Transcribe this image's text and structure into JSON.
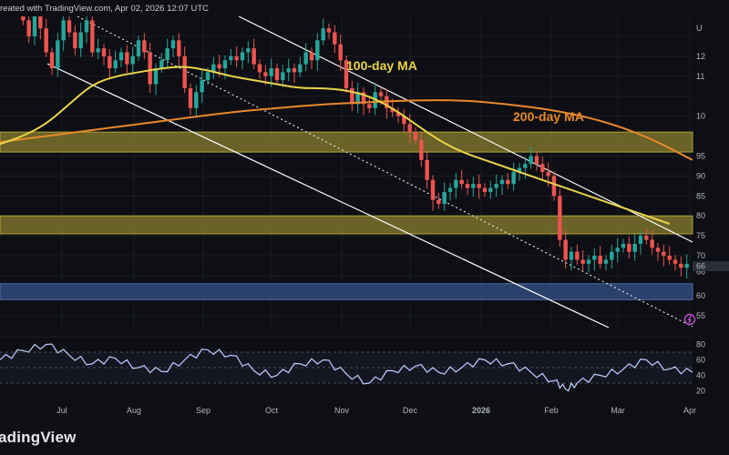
{
  "header": {
    "text": "reated with TradingView.com, Apr 02, 2026 12:07 UTC"
  },
  "footer": {
    "logo": "adingView"
  },
  "chart_data": [
    {
      "type": "line",
      "panel": "price",
      "x_labels": [
        "Jul",
        "Aug",
        "Sep",
        "Oct",
        "Nov",
        "Dec",
        "2026",
        "Feb",
        "Mar",
        "Apr"
      ],
      "price_axis_labels": [
        "12",
        "11",
        "10",
        "95",
        "90",
        "85",
        "80",
        "75",
        "70",
        "66",
        "60",
        "55"
      ],
      "corner_label": "U",
      "price_path": [
        [
          0,
          138
        ],
        [
          0.5,
          140
        ],
        [
          1,
          137
        ],
        [
          1.5,
          133
        ],
        [
          2,
          129
        ],
        [
          2.5,
          125
        ],
        [
          3,
          130
        ],
        [
          3.5,
          127
        ],
        [
          4,
          121
        ],
        [
          4.5,
          117
        ],
        [
          5,
          124
        ],
        [
          5.5,
          129
        ],
        [
          6,
          126
        ],
        [
          6.5,
          122
        ],
        [
          7,
          126
        ],
        [
          7.5,
          129
        ],
        [
          8,
          121
        ],
        [
          8.5,
          122
        ],
        [
          9,
          120
        ],
        [
          9.5,
          117
        ],
        [
          10,
          119
        ],
        [
          10.5,
          121
        ],
        [
          11,
          118
        ],
        [
          11.5,
          120
        ],
        [
          12,
          124
        ],
        [
          12.5,
          121
        ],
        [
          13,
          113
        ],
        [
          13.5,
          117
        ],
        [
          14,
          119
        ],
        [
          14.5,
          122
        ],
        [
          15,
          124
        ],
        [
          15.5,
          120
        ],
        [
          16,
          112
        ],
        [
          16.5,
          107
        ],
        [
          17,
          111
        ],
        [
          17.5,
          114
        ],
        [
          18,
          116
        ],
        [
          18.5,
          118
        ],
        [
          19,
          117
        ],
        [
          19.5,
          119
        ],
        [
          20,
          120
        ],
        [
          20.5,
          119
        ],
        [
          21,
          121
        ],
        [
          21.5,
          122
        ],
        [
          22,
          118
        ],
        [
          22.5,
          116
        ],
        [
          23,
          115
        ],
        [
          23.5,
          117
        ],
        [
          24,
          114
        ],
        [
          24.5,
          116
        ],
        [
          25,
          117
        ],
        [
          25.5,
          116
        ],
        [
          26,
          118
        ],
        [
          26.5,
          121
        ],
        [
          27,
          119
        ],
        [
          27.5,
          124
        ],
        [
          28,
          127
        ],
        [
          28.5,
          126
        ],
        [
          29,
          123
        ],
        [
          29.5,
          119
        ],
        [
          30,
          112
        ],
        [
          30.5,
          108
        ],
        [
          31,
          111
        ],
        [
          31.5,
          108
        ],
        [
          32,
          107
        ],
        [
          32.5,
          111
        ],
        [
          33,
          110
        ],
        [
          33.5,
          107
        ],
        [
          34,
          106
        ],
        [
          34.5,
          105
        ],
        [
          35,
          103
        ],
        [
          35.5,
          101
        ],
        [
          36,
          99
        ],
        [
          36.5,
          94
        ],
        [
          37,
          89
        ],
        [
          37.5,
          84
        ],
        [
          38,
          83
        ],
        [
          38.5,
          86
        ],
        [
          39,
          87
        ],
        [
          39.5,
          89
        ],
        [
          40,
          88
        ],
        [
          40.5,
          87
        ],
        [
          41,
          88
        ],
        [
          41.5,
          87
        ],
        [
          42,
          86
        ],
        [
          42.5,
          87
        ],
        [
          43,
          88
        ],
        [
          43.5,
          89
        ],
        [
          44,
          88
        ],
        [
          44.5,
          91
        ],
        [
          45,
          92
        ],
        [
          45.5,
          93
        ],
        [
          46,
          95
        ],
        [
          46.5,
          93
        ],
        [
          47,
          91
        ],
        [
          47.5,
          90
        ],
        [
          48,
          85
        ],
        [
          48.5,
          74
        ],
        [
          49,
          69
        ],
        [
          49.5,
          71
        ],
        [
          50,
          69
        ],
        [
          50.5,
          68
        ],
        [
          51,
          69
        ],
        [
          51.5,
          70
        ],
        [
          52,
          68
        ],
        [
          52.5,
          69
        ],
        [
          53,
          71
        ],
        [
          53.5,
          72
        ],
        [
          54,
          73
        ],
        [
          54.5,
          71
        ],
        [
          55,
          73
        ],
        [
          55.5,
          75
        ],
        [
          56,
          74
        ],
        [
          56.5,
          72
        ],
        [
          57,
          71
        ],
        [
          57.5,
          70
        ],
        [
          58,
          69
        ],
        [
          58.5,
          68
        ],
        [
          59,
          67
        ],
        [
          59.5,
          68
        ]
      ],
      "ma100": [
        [
          0,
          98
        ],
        [
          2,
          100
        ],
        [
          4,
          103
        ],
        [
          6,
          108
        ],
        [
          8,
          113
        ],
        [
          10,
          115
        ],
        [
          12,
          116
        ],
        [
          14,
          117
        ],
        [
          16,
          117.5
        ],
        [
          18,
          116.5
        ],
        [
          20,
          115
        ],
        [
          22,
          114
        ],
        [
          24,
          113
        ],
        [
          26,
          112
        ],
        [
          28,
          112
        ],
        [
          30,
          111.5
        ],
        [
          32,
          110
        ],
        [
          34,
          107
        ],
        [
          36,
          103
        ],
        [
          38,
          99
        ],
        [
          40,
          96
        ],
        [
          42,
          94
        ],
        [
          44,
          92
        ],
        [
          46,
          90
        ],
        [
          48,
          88
        ],
        [
          50,
          86
        ],
        [
          52,
          84
        ],
        [
          54,
          82
        ],
        [
          56,
          80
        ],
        [
          58,
          78
        ]
      ],
      "ma200": [
        [
          0,
          98.5
        ],
        [
          4,
          100
        ],
        [
          8,
          101.5
        ],
        [
          12,
          103
        ],
        [
          16,
          104.5
        ],
        [
          20,
          106
        ],
        [
          24,
          107
        ],
        [
          28,
          108
        ],
        [
          32,
          108.5
        ],
        [
          36,
          109
        ],
        [
          40,
          109
        ],
        [
          44,
          108
        ],
        [
          48,
          106.5
        ],
        [
          52,
          104
        ],
        [
          56,
          100
        ],
        [
          60,
          94
        ]
      ],
      "rsi": [
        [
          0,
          60
        ],
        [
          2,
          72
        ],
        [
          4,
          80
        ],
        [
          6,
          66
        ],
        [
          8,
          55
        ],
        [
          10,
          62
        ],
        [
          12,
          50
        ],
        [
          14,
          45
        ],
        [
          16,
          60
        ],
        [
          18,
          73
        ],
        [
          20,
          66
        ],
        [
          22,
          46
        ],
        [
          24,
          40
        ],
        [
          26,
          55
        ],
        [
          28,
          60
        ],
        [
          30,
          42
        ],
        [
          32,
          30
        ],
        [
          34,
          46
        ],
        [
          36,
          52
        ],
        [
          38,
          44
        ],
        [
          40,
          50
        ],
        [
          42,
          60
        ],
        [
          44,
          55
        ],
        [
          46,
          44
        ],
        [
          48,
          33
        ],
        [
          49,
          22
        ],
        [
          50,
          30
        ],
        [
          52,
          40
        ],
        [
          54,
          48
        ],
        [
          56,
          60
        ],
        [
          58,
          48
        ],
        [
          60,
          44
        ]
      ],
      "rsi_axis_labels": [
        "80",
        "60",
        "40",
        "20"
      ],
      "annotations": [
        "100-day MA",
        "200-day MA"
      ],
      "colors": {
        "candle_up": "#26a69a",
        "candle_down": "#ef5350",
        "ma100": "#e8d44a",
        "ma200": "#e8892b",
        "channel": "#ffffff",
        "zone_yellow": "#8a7f2c",
        "zone_blue": "#2f4a7a",
        "rsi": "#bfd0ff"
      }
    }
  ]
}
